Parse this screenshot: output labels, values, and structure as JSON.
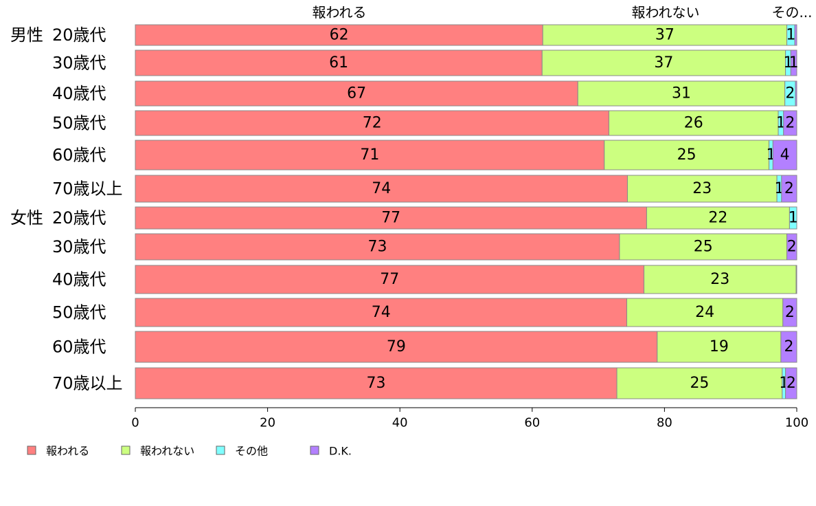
{
  "chart_data": {
    "type": "bar",
    "orientation": "horizontal",
    "stacked": true,
    "xlim": [
      0,
      100
    ],
    "xticks": [
      "0",
      "20",
      "40",
      "60",
      "80",
      "100"
    ],
    "column_headers": [
      "報われる",
      "報われない",
      "その..."
    ],
    "groups": [
      {
        "label": "男性",
        "rows": [
          "20歳代",
          "30歳代",
          "40歳代",
          "50歳代",
          "60歳代",
          "70歳以上"
        ]
      },
      {
        "label": "女性",
        "rows": [
          "20歳代",
          "30歳代",
          "40歳代",
          "50歳代",
          "60歳代",
          "70歳以上"
        ]
      }
    ],
    "series": [
      {
        "name": "報われる",
        "color": "#ff8080",
        "values": [
          61.6,
          61.5,
          66.9,
          71.6,
          70.9,
          74.4,
          77.3,
          73.2,
          76.9,
          74.3,
          78.9,
          72.8
        ],
        "labels": [
          "62",
          "61",
          "67",
          "72",
          "71",
          "74",
          "77",
          "73",
          "77",
          "74",
          "79",
          "73"
        ]
      },
      {
        "name": "報われない",
        "color": "#ccff80",
        "values": [
          36.9,
          36.8,
          31.3,
          25.6,
          24.9,
          22.6,
          21.6,
          25.3,
          23.0,
          23.6,
          18.7,
          25.0
        ],
        "labels": [
          "37",
          "37",
          "31",
          "26",
          "25",
          "23",
          "22",
          "25",
          "23",
          "24",
          "19",
          "25"
        ]
      },
      {
        "name": "その他",
        "color": "#80ffff",
        "values": [
          1.2,
          0.8,
          1.6,
          0.8,
          0.6,
          0.7,
          1.1,
          0.0,
          0.0,
          0.0,
          0.0,
          0.5
        ],
        "labels": [
          "1",
          "1",
          "2",
          "1",
          "1",
          "1",
          "1",
          "",
          "",
          "",
          "",
          "1"
        ]
      },
      {
        "name": "D.K.",
        "color": "#b380ff",
        "values": [
          0.3,
          0.9,
          0.2,
          2.0,
          3.6,
          2.3,
          0.0,
          1.5,
          0.1,
          2.1,
          2.4,
          1.7
        ],
        "labels": [
          "",
          "1",
          "",
          "2",
          "4",
          "2",
          "",
          "2",
          "",
          "2",
          "2",
          "2"
        ]
      }
    ],
    "legend": [
      "報われる",
      "報われない",
      "その他",
      "D.K."
    ],
    "legend_position": "bottom-left",
    "grid": false
  }
}
